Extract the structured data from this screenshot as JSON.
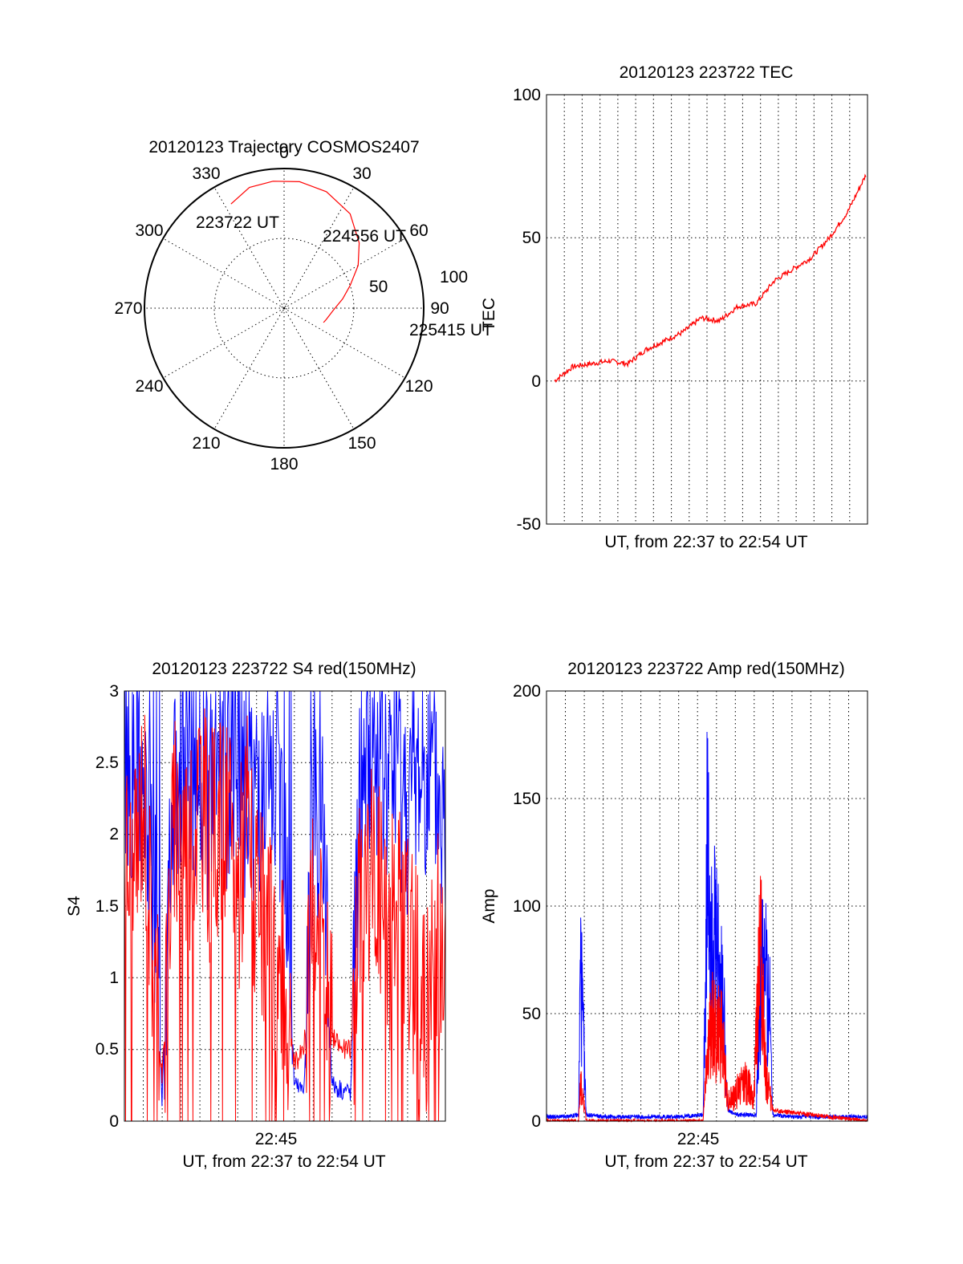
{
  "charts": {
    "polar": {
      "title": "20120123 Trajectory COSMOS2407",
      "angle_labels": [
        "0",
        "30",
        "60",
        "90",
        "120",
        "150",
        "180",
        "210",
        "240",
        "270",
        "300",
        "330"
      ],
      "elevation_labels": [
        "50",
        "100"
      ],
      "side_label": "TEC",
      "time_labels": [
        "223722 UT",
        "224556 UT",
        "225415 UT"
      ]
    },
    "tec": {
      "title": "20120123 223722 TEC",
      "xlabel": "UT, from 22:37 to 22:54 UT",
      "ylabel": "",
      "y_ticks": [
        "100",
        "50",
        "0",
        "-50"
      ]
    },
    "s4": {
      "title": "20120123 223722 S4 red(150MHz)",
      "xlabel": "UT, from 22:37 to 22:54 UT",
      "ylabel": "S4",
      "x_tick": "22:45",
      "y_ticks": [
        "3",
        "2.5",
        "2",
        "1.5",
        "1",
        "0.5",
        "0"
      ]
    },
    "amp": {
      "title": "20120123 223722 Amp red(150MHz)",
      "xlabel": "UT, from 22:37 to 22:54 UT",
      "ylabel": "Amp",
      "x_tick": "22:45",
      "y_ticks": [
        "200",
        "150",
        "100",
        "50",
        "0"
      ]
    }
  },
  "colors": {
    "red": "#ff0000",
    "blue": "#0000ff",
    "grid": "#000000"
  },
  "chart_data": [
    {
      "type": "scatter",
      "title": "20120123 Trajectory COSMOS2407",
      "polar": true,
      "angular_axis": "azimuth",
      "series": [
        {
          "points": [
            [
              333,
              67
            ],
            [
              344,
              72
            ],
            [
              355,
              73
            ],
            [
              7,
              73
            ],
            [
              20,
              71
            ],
            [
              35,
              66
            ],
            [
              49,
              57
            ],
            [
              60,
              49
            ],
            [
              71,
              40
            ],
            [
              81,
              34
            ],
            [
              93,
              28
            ],
            [
              105,
              25
            ],
            [
              110,
              24
            ]
          ]
        }
      ]
    },
    {
      "type": "line",
      "title": "20120123 223722 TEC",
      "xlabel": "UT, from 22:37 to 22:54 UT",
      "ylim": [
        -50,
        100
      ],
      "x_unit": "minutes after 22:37",
      "grid": true,
      "series": [
        {
          "x": [
            0,
            1,
            2,
            3,
            4,
            5,
            6,
            7,
            8,
            9,
            10,
            11,
            12,
            13,
            14,
            15,
            16,
            17
          ],
          "values": [
            0,
            5,
            6,
            7,
            6,
            11,
            14,
            17,
            22,
            21,
            26,
            27,
            35,
            39,
            43,
            50,
            59,
            72
          ]
        }
      ]
    },
    {
      "type": "line",
      "title": "20120123 223722 S4 red(150MHz)",
      "ylabel": "S4",
      "xlabel": "UT, from 22:37 to 22:54 UT",
      "ylim": [
        0,
        3
      ],
      "x_unit": "minutes after 22:37",
      "grid": true,
      "series": [
        {
          "color": "#0000ff",
          "x": [
            0,
            0.5,
            1,
            1.5,
            2,
            2.5,
            3,
            3.5,
            4,
            4.5,
            5,
            5.5,
            6,
            6.5,
            7,
            7.5,
            8,
            8.5,
            9,
            9.5,
            10,
            10.5,
            11,
            11.5,
            12,
            12.5,
            13,
            13.5,
            14,
            14.5,
            15,
            15.5,
            16,
            16.5,
            17
          ],
          "values": [
            2.5,
            2.3,
            2.2,
            1.8,
            0.15,
            2.4,
            2.5,
            2.4,
            2.6,
            2.2,
            2.5,
            2.4,
            2.6,
            2.2,
            2.3,
            2.0,
            2.2,
            2.0,
            0.25,
            0.2,
            2.2,
            2.0,
            0.25,
            0.22,
            0.2,
            2.4,
            2.6,
            2.5,
            2.3,
            2.5,
            2.2,
            2.4,
            2.5,
            2.3,
            2.0
          ]
        },
        {
          "color": "#ff0000",
          "x": [
            0,
            0.5,
            1,
            1.5,
            2,
            2.5,
            3,
            3.5,
            4,
            4.5,
            5,
            5.5,
            6,
            6.5,
            7,
            7.5,
            8,
            8.5,
            9,
            9.5,
            10,
            10.5,
            11,
            11.5,
            12,
            12.5,
            13,
            13.5,
            14,
            14.5,
            15,
            15.5,
            16,
            16.5,
            17
          ],
          "values": [
            1.9,
            1.6,
            2.4,
            1.2,
            0.3,
            1.9,
            2.2,
            1.8,
            2.4,
            1.9,
            2.1,
            2.0,
            1.6,
            2.2,
            1.4,
            1.3,
            1.1,
            0.9,
            0.4,
            0.5,
            1.4,
            1.3,
            0.6,
            0.5,
            0.5,
            1.6,
            1.8,
            1.7,
            1.2,
            1.6,
            1.3,
            1.0,
            0.7,
            1.3,
            1.0
          ]
        }
      ]
    },
    {
      "type": "line",
      "title": "20120123 223722 Amp red(150MHz)",
      "ylabel": "Amp",
      "xlabel": "UT, from 22:37 to 22:54 UT",
      "ylim": [
        0,
        200
      ],
      "x_unit": "minutes after 22:37",
      "grid": true,
      "series": [
        {
          "color": "#0000ff",
          "x": [
            0,
            1,
            1.7,
            1.8,
            1.9,
            2.1,
            3,
            5,
            7,
            8.3,
            8.5,
            8.6,
            9,
            9.4,
            9.6,
            10,
            11.1,
            11.3,
            11.6,
            11.8,
            12,
            13,
            15,
            17
          ],
          "values": [
            2,
            2,
            3,
            120,
            80,
            3,
            2,
            2,
            2,
            3,
            190,
            160,
            120,
            80,
            5,
            3,
            3,
            100,
            110,
            90,
            3,
            2,
            2,
            2
          ]
        },
        {
          "color": "#ff0000",
          "x": [
            0,
            1.7,
            1.8,
            1.9,
            2.1,
            8.3,
            8.5,
            8.8,
            9.3,
            9.6,
            10,
            10.5,
            11,
            11.3,
            11.6,
            12,
            17
          ],
          "values": [
            0,
            0,
            25,
            20,
            0,
            0,
            50,
            70,
            60,
            15,
            20,
            30,
            20,
            138,
            40,
            5,
            0
          ]
        }
      ]
    }
  ]
}
